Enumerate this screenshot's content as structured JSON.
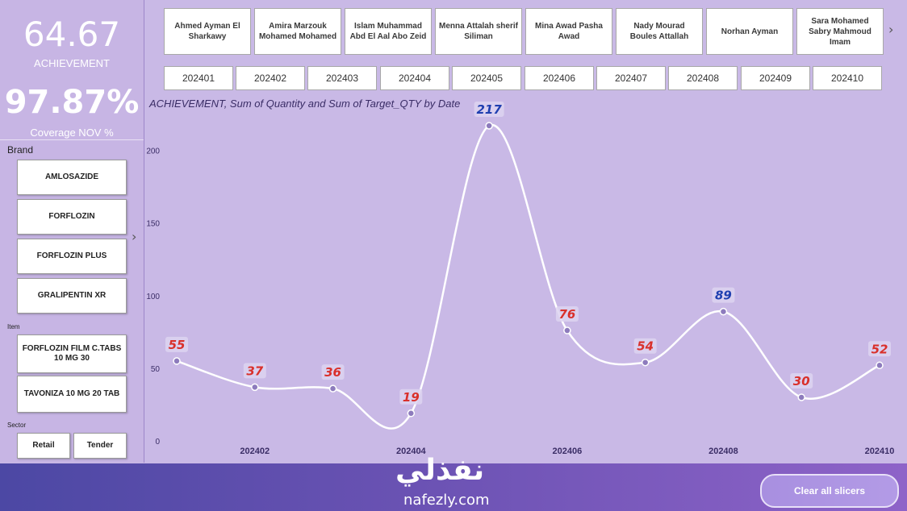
{
  "kpis": {
    "achievement_value": "64.67",
    "achievement_label": "ACHIEVEMENT",
    "coverage_value": "97.87%",
    "coverage_label": "Coverage NOV %"
  },
  "brand": {
    "label": "Brand",
    "items": [
      "AMLOSAZIDE",
      "FORFLOZIN",
      "FORFLOZIN PLUS",
      "GRALIPENTIN XR"
    ]
  },
  "item": {
    "label": "Item",
    "items": [
      "FORFLOZIN FILM C.TABS 10 MG 30",
      "TAVONIZA 10 MG 20 TAB"
    ]
  },
  "sector": {
    "label": "Sector",
    "items": [
      "Retail",
      "Tender"
    ]
  },
  "reps": [
    "Ahmed Ayman El Sharkawy",
    "Amira Marzouk Mohamed Mohamed",
    "Islam Muhammad Abd El Aal Abo Zeid",
    "Menna Attalah sherif Siliman",
    "Mina Awad Pasha Awad",
    "Nady Mourad Boules Attallah",
    "Norhan Ayman",
    "Sara Mohamed Sabry Mahmoud Imam"
  ],
  "dates": [
    "202401",
    "202402",
    "202403",
    "202404",
    "202405",
    "202406",
    "202407",
    "202408",
    "202409",
    "202410"
  ],
  "chart_data": {
    "type": "line",
    "title": "ACHIEVEMENT, Sum of Quantity and Sum of Target_QTY by Date",
    "x": [
      "202401",
      "202402",
      "202403",
      "202404",
      "202405",
      "202406",
      "202407",
      "202408",
      "202409",
      "202410"
    ],
    "x_tick_labels": [
      "202402",
      "202404",
      "202406",
      "202408",
      "202410"
    ],
    "series": [
      {
        "values": [
          55,
          37,
          36,
          19,
          217,
          76,
          54,
          89,
          30,
          52
        ]
      }
    ],
    "label_colors": [
      "#d9302b",
      "#d9302b",
      "#d9302b",
      "#d9302b",
      "#1f3fb0",
      "#d9302b",
      "#d9302b",
      "#1f3fb0",
      "#d9302b",
      "#d9302b"
    ],
    "yticks": [
      0,
      50,
      100,
      150,
      200
    ],
    "ylim": [
      0,
      217
    ],
    "line_color": "#ffffff"
  },
  "footer": {
    "clear_label": "Clear all slicers",
    "logo_ar": "نفذلي",
    "logo_en": "nafezly.com"
  }
}
